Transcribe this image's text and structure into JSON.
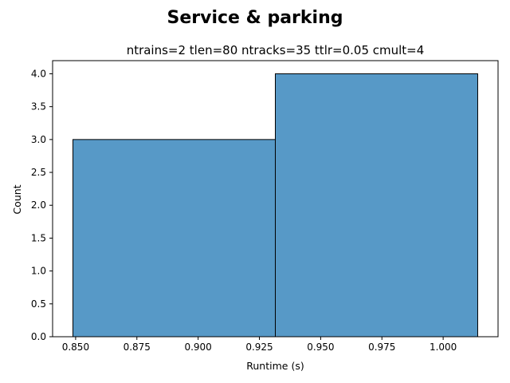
{
  "suptitle": "Service & parking",
  "chart_data": {
    "type": "bar",
    "title": "ntrains=2 tlen=80 ntracks=35 ttlr=0.05 cmult=4",
    "xlabel": "Runtime (s)",
    "ylabel": "Count",
    "bins": [
      {
        "x0": 0.8489,
        "x1": 0.9315,
        "count": 3
      },
      {
        "x0": 0.9315,
        "x1": 1.0141,
        "count": 4
      }
    ],
    "xlim": [
      0.8406,
      1.0224
    ],
    "ylim": [
      0,
      4.2
    ],
    "xticks": [
      0.85,
      0.875,
      0.9,
      0.925,
      0.95,
      0.975,
      1.0
    ],
    "xtick_labels": [
      "0.850",
      "0.875",
      "0.900",
      "0.925",
      "0.950",
      "0.975",
      "1.000"
    ],
    "yticks": [
      0.0,
      0.5,
      1.0,
      1.5,
      2.0,
      2.5,
      3.0,
      3.5,
      4.0
    ],
    "ytick_labels": [
      "0.0",
      "0.5",
      "1.0",
      "1.5",
      "2.0",
      "2.5",
      "3.0",
      "3.5",
      "4.0"
    ],
    "bar_color": "#5799c7",
    "edge_color": "#000000",
    "grid": false,
    "legend": "none"
  }
}
